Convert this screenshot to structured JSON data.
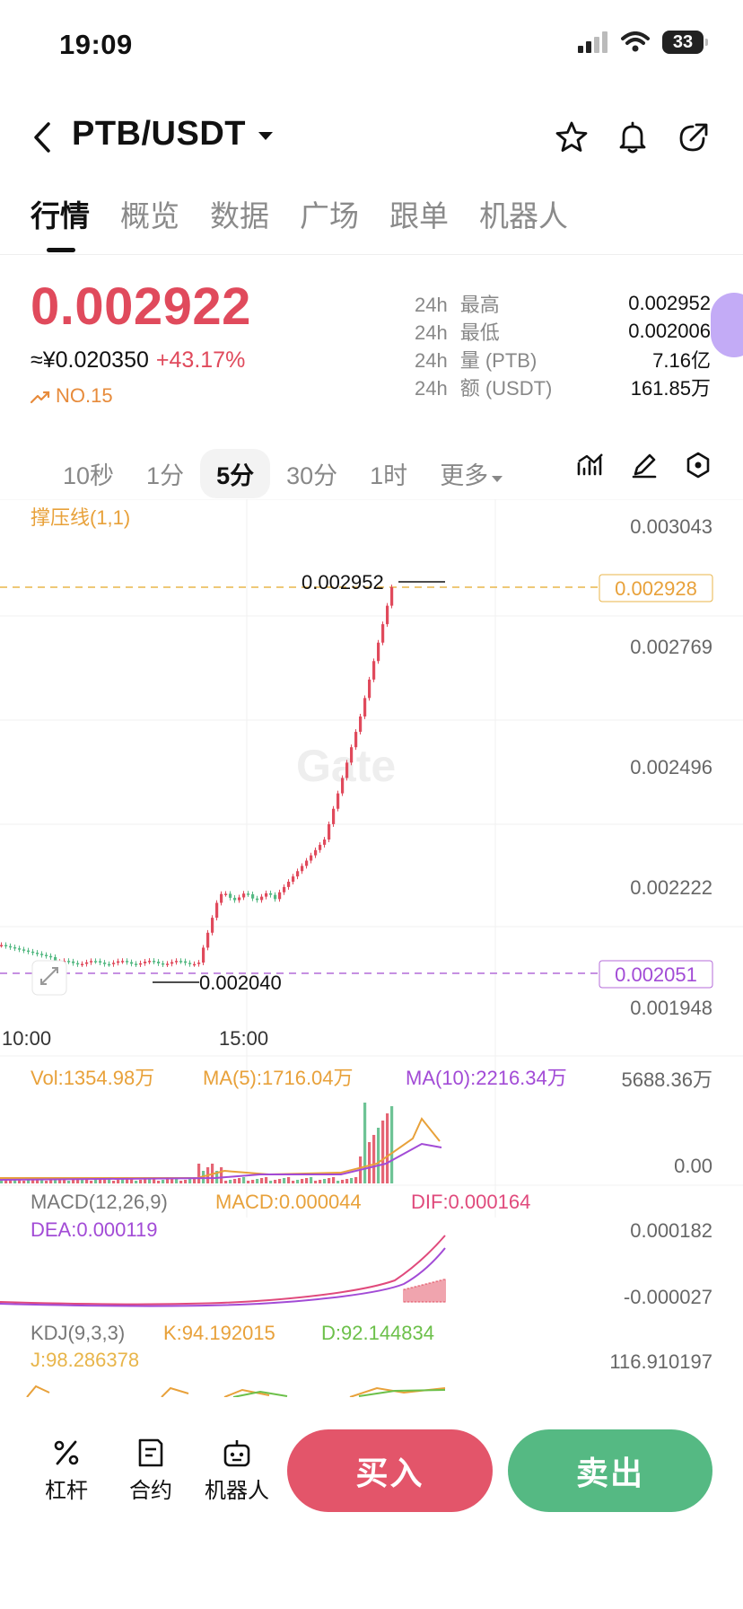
{
  "status": {
    "time": "19:09",
    "battery": "33"
  },
  "header": {
    "pair": "PTB/USDT"
  },
  "tabs": [
    "行情",
    "概览",
    "数据",
    "广场",
    "跟单",
    "机器人"
  ],
  "price": {
    "last": "0.002922",
    "cny": "≈¥0.020350",
    "change": "+43.17%",
    "rank": "NO.15",
    "stats": [
      {
        "label": "24h",
        "name": "最高",
        "value": "0.002952"
      },
      {
        "label": "24h",
        "name": "最低",
        "value": "0.002006"
      },
      {
        "label": "24h",
        "name": "量 (PTB)",
        "value": "7.16亿"
      },
      {
        "label": "24h",
        "name": "额 (USDT)",
        "value": "161.85万"
      }
    ]
  },
  "timeframes": [
    "10秒",
    "1分",
    "5分",
    "30分",
    "1时",
    "更多"
  ],
  "active_timeframe": "5分",
  "chart": {
    "indicator_label": "撑压线(1,1)",
    "watermark": "Gate",
    "y_ticks": [
      "0.003043",
      "0.002769",
      "0.002496",
      "0.002222",
      "0.001948"
    ],
    "current_price_tag": "0.002928",
    "support_tag": "0.002051",
    "high_label": "0.002952",
    "low_label": "0.002040",
    "x_ticks": [
      "10:00",
      "15:00"
    ],
    "volume": {
      "vol": "Vol:1354.98万",
      "ma5": "MA(5):1716.04万",
      "ma10": "MA(10):2216.34万",
      "max": "5688.36万",
      "min": "0.00"
    },
    "macd": {
      "title": "MACD(12,26,9)",
      "macd": "MACD:0.000044",
      "dif": "DIF:0.000164",
      "dea": "DEA:0.000119",
      "top": "0.000182",
      "bottom": "-0.000027"
    },
    "kdj": {
      "title": "KDJ(9,3,3)",
      "k": "K:94.192015",
      "d": "D:92.144834",
      "j": "J:98.286378",
      "top": "116.910197"
    }
  },
  "bottom": {
    "leverage": "杠杆",
    "contract": "合约",
    "bot": "机器人",
    "buy": "买入",
    "sell": "卖出"
  },
  "colors": {
    "up": "#e04a5c",
    "down": "#55b983",
    "accent_orange": "#e8a13a",
    "purple": "#a24bd6"
  }
}
